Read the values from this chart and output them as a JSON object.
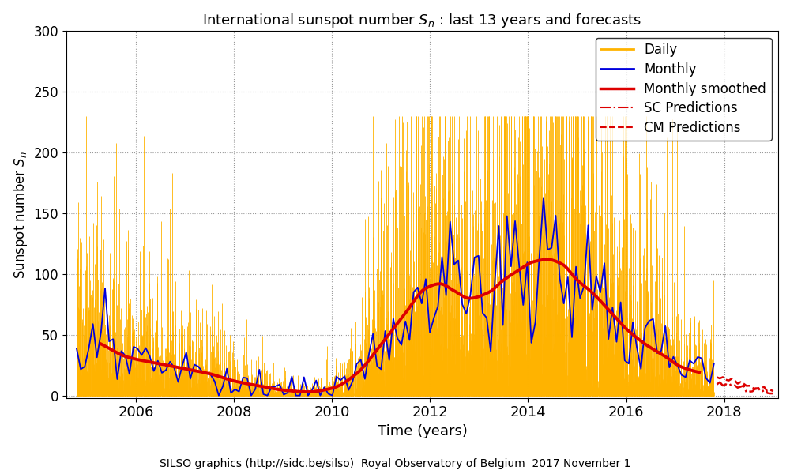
{
  "title": "International sunspot number $S_{n}$ : last 13 years and forecasts",
  "xlabel": "Time (years)",
  "ylabel": "Sunspot number $S_{n}$",
  "footer": "SILSO graphics (http://sidc.be/silso)  Royal Observatory of Belgium  2017 November 1",
  "xlim": [
    2004.58,
    2019.1
  ],
  "ylim": [
    -2,
    300
  ],
  "yticks": [
    0,
    50,
    100,
    150,
    200,
    250,
    300
  ],
  "xticks": [
    2006,
    2008,
    2010,
    2012,
    2014,
    2016,
    2018
  ],
  "legend_labels": [
    "Daily",
    "Monthly",
    "Monthly smoothed",
    "SC Predictions",
    "CM Predictions"
  ],
  "daily_color": "#FFB300",
  "monthly_color": "#0000DD",
  "smoothed_color": "#DD0000",
  "prediction_color": "#DD0000",
  "background_color": "#FFFFFF",
  "grid_color": "#555555"
}
